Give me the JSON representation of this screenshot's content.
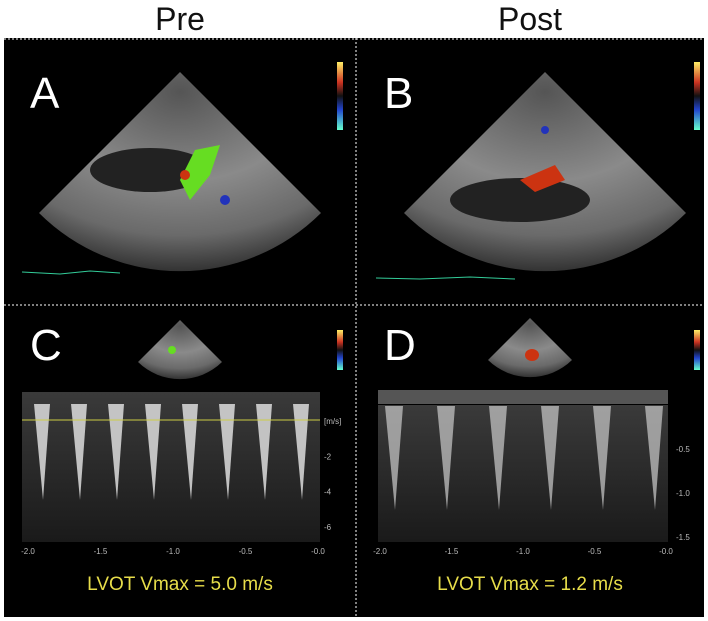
{
  "header": {
    "columns": [
      "Pre",
      "Post"
    ]
  },
  "panels": [
    {
      "label": "A"
    },
    {
      "label": "B"
    },
    {
      "label": "C",
      "x_labels": [
        "-2.0",
        "-1.5",
        "-1.0",
        "-0.5",
        "-0.0"
      ],
      "y_labels": [
        "[m/s]",
        "-2",
        "-4",
        "-6"
      ],
      "caption": "LVOT Vmax = 5.0 m/s"
    },
    {
      "label": "D",
      "x_labels": [
        "-2.0",
        "-1.5",
        "-1.0",
        "-0.5",
        "-0.0"
      ],
      "y_labels": [
        "-0.5",
        "-1.0",
        "-1.5"
      ],
      "caption": "LVOT Vmax = 1.2 m/s"
    }
  ]
}
